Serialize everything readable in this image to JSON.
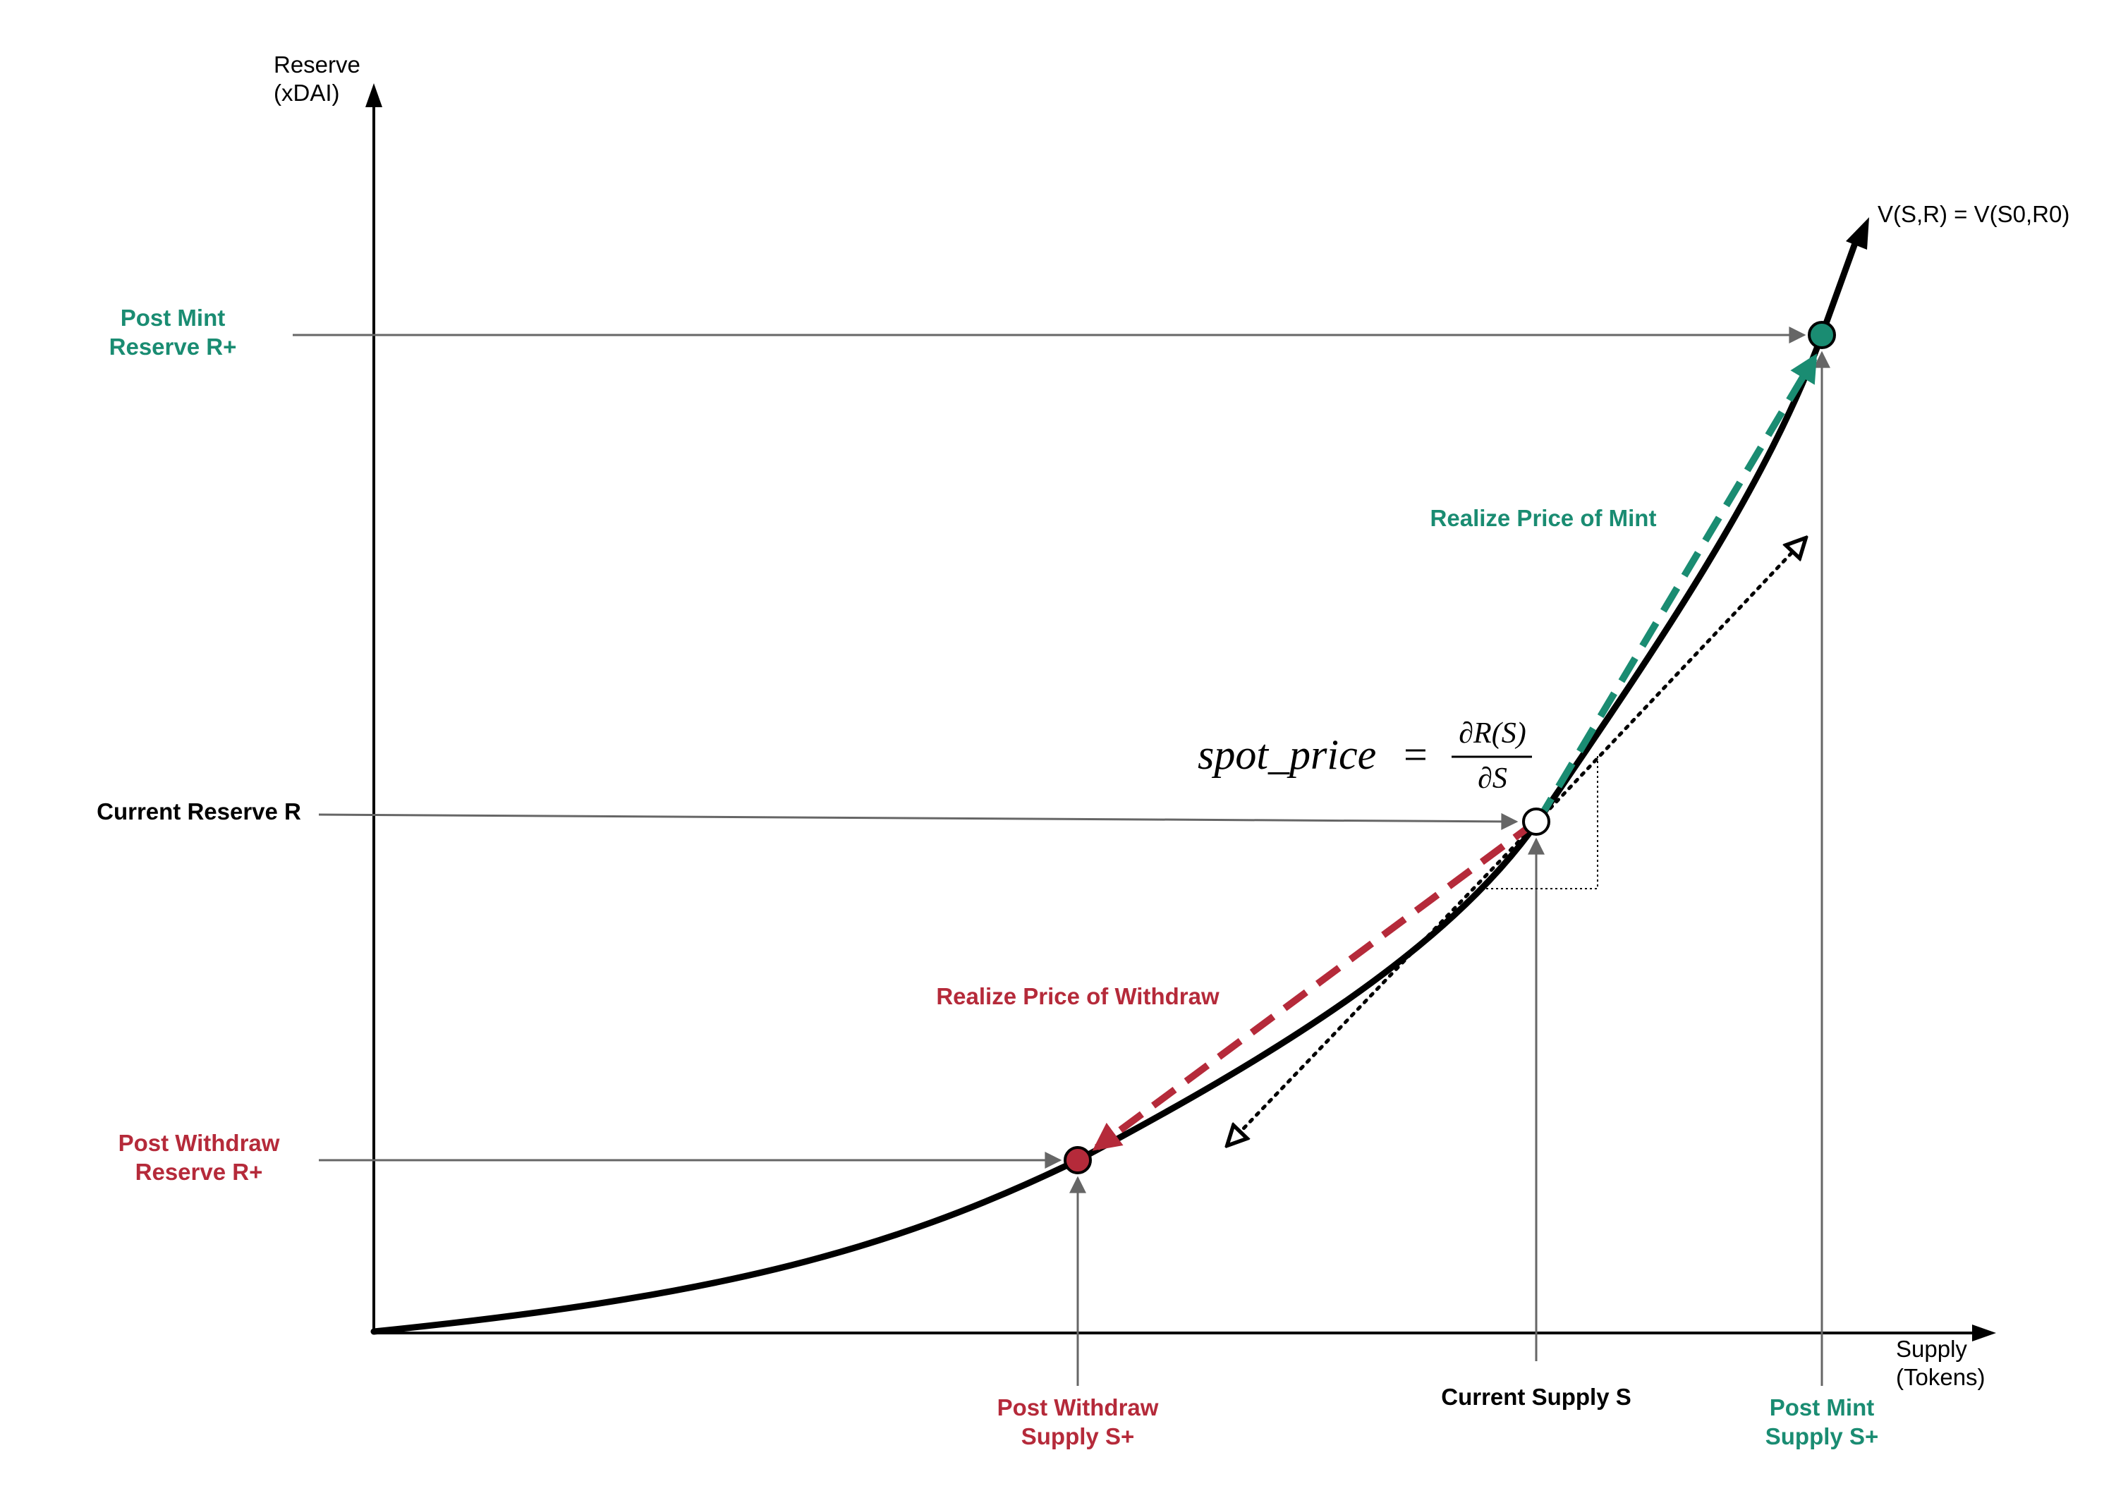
{
  "colors": {
    "mint": "#1a8c72",
    "withdraw": "#b52a3a",
    "axis": "#000000",
    "guide": "#666666",
    "text": "#000000"
  },
  "axes": {
    "y_label_line1": "Reserve",
    "y_label_line2": "(xDAI)",
    "x_label_line1": "Supply",
    "x_label_line2": "(Tokens)"
  },
  "curve": {
    "label": "V(S,R) = V(S0,R0)"
  },
  "labels": {
    "post_mint_reserve_line1": "Post Mint",
    "post_mint_reserve_line2": "Reserve R+",
    "current_reserve": "Current Reserve R",
    "post_withdraw_reserve_line1": "Post Withdraw",
    "post_withdraw_reserve_line2": "Reserve R+",
    "post_withdraw_supply_line1": "Post Withdraw",
    "post_withdraw_supply_line2": "Supply S+",
    "current_supply": "Current Supply S",
    "post_mint_supply_line1": "Post Mint",
    "post_mint_supply_line2": "Supply S+",
    "realize_mint": "Realize Price of Mint",
    "realize_withdraw": "Realize Price of Withdraw"
  },
  "formula": {
    "lhs": "spot_price",
    "equals": "=",
    "numerator": "∂R(S)",
    "denominator": "∂S"
  }
}
